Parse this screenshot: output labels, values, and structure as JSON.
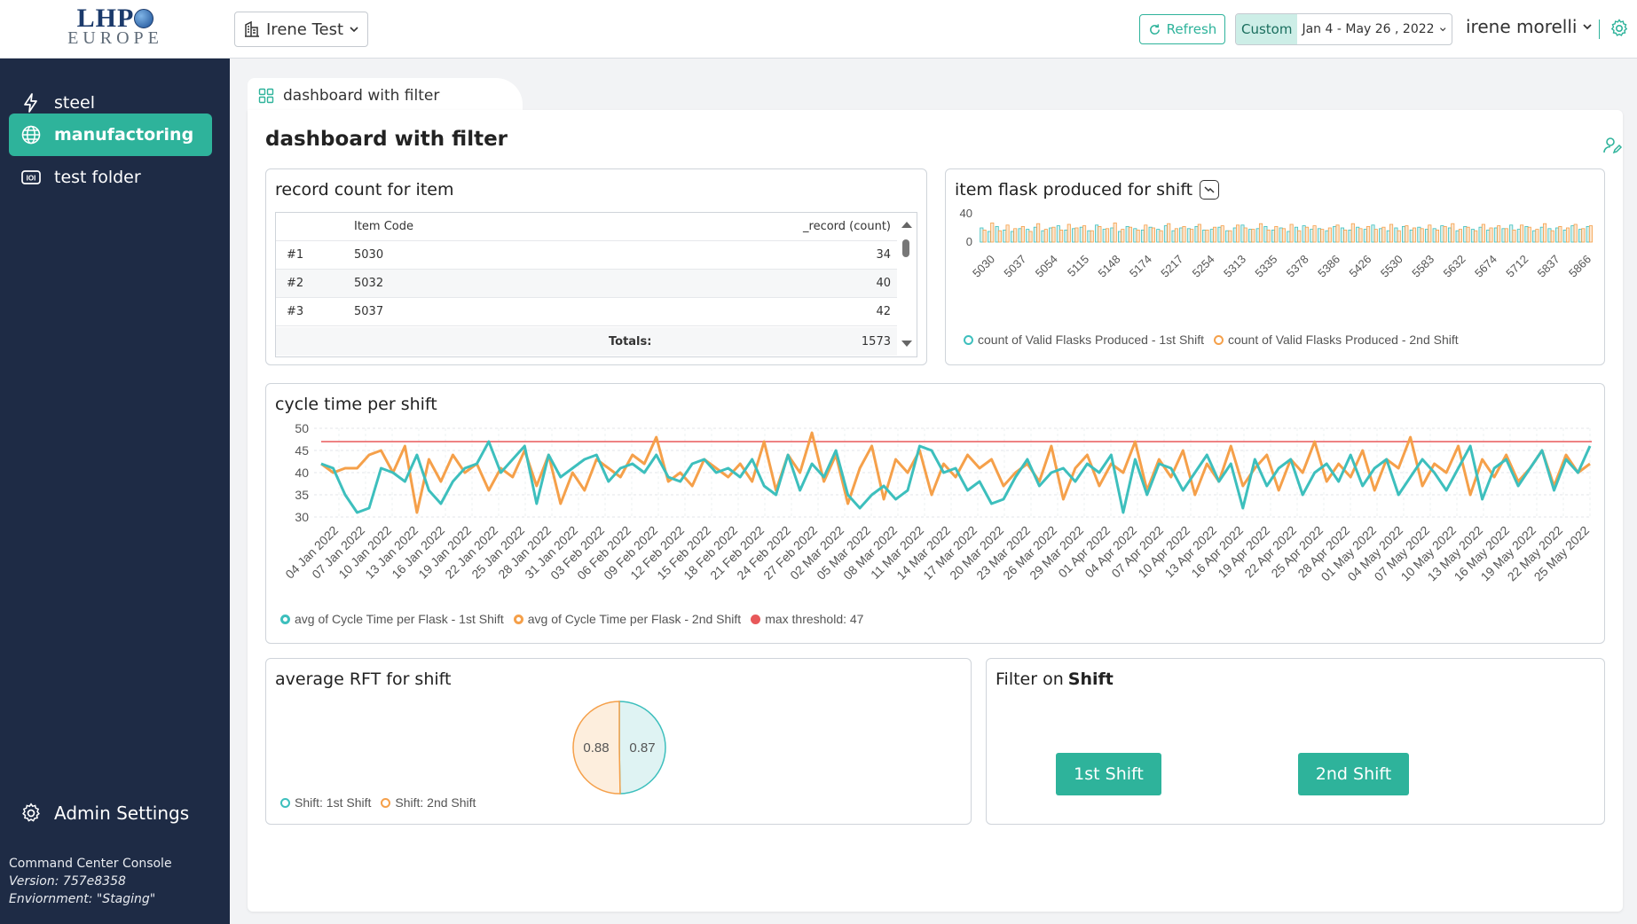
{
  "header": {
    "logo_top": "LHP",
    "logo_bottom": "EUROPE",
    "workspace": "Irene Test",
    "refresh_label": "Refresh",
    "date_mode": "Custom",
    "date_range": "Jan 4 - May 26 , 2022",
    "user_name": "irene morelli"
  },
  "sidebar": {
    "items": [
      {
        "label": "steel",
        "icon": "lightning-icon"
      },
      {
        "label": "manufactoring",
        "icon": "globe-icon"
      },
      {
        "label": "test folder",
        "icon": "folder-icon"
      }
    ],
    "admin_label": "Admin Settings",
    "console_name": "Command Center Console",
    "version": "Version: 757e8358",
    "environment": "Enviornment: \"Staging\""
  },
  "tab": {
    "label": "dashboard with filter"
  },
  "dashboard": {
    "title": "dashboard with filter"
  },
  "colors": {
    "accent": "#2eb39b",
    "sidebar": "#1e2b45",
    "teal_series": "#3dbfbd",
    "orange_series": "#f5a04a",
    "threshold": "#e8585a"
  },
  "record_table": {
    "title": "record count for item",
    "headers": [
      "",
      "Item Code",
      "_record (count)"
    ],
    "rows": [
      {
        "rank": "#1",
        "code": "5030",
        "count": "34"
      },
      {
        "rank": "#2",
        "code": "5032",
        "count": "40"
      },
      {
        "rank": "#3",
        "code": "5037",
        "count": "42"
      }
    ],
    "totals_label": "Totals:",
    "totals_value": "1573"
  },
  "flask_chart": {
    "title": "item flask produced for shift",
    "legend": [
      "count of Valid Flasks Produced - 1st Shift",
      "count of Valid Flasks Produced - 2nd Shift"
    ]
  },
  "cycle_chart": {
    "title": "cycle time per shift",
    "legend": [
      "avg of Cycle Time per Flask - 1st Shift",
      "avg of Cycle Time per Flask - 2nd Shift",
      "max threshold: 47"
    ]
  },
  "rft_chart": {
    "title": "average RFT for shift",
    "legend": [
      "Shift: 1st Shift",
      "Shift: 2nd Shift"
    ]
  },
  "filter": {
    "title_prefix": "Filter on",
    "title_field": "Shift",
    "buttons": [
      "1st Shift",
      "2nd Shift"
    ]
  },
  "chart_data": [
    {
      "type": "bar",
      "title": "item flask produced for shift",
      "y_ticks": [
        "40",
        "0"
      ],
      "ylim": [
        0,
        40
      ],
      "x_tick_labels": [
        "5030",
        "5037",
        "5054",
        "5115",
        "5148",
        "5174",
        "5217",
        "5254",
        "5313",
        "5335",
        "5378",
        "5386",
        "5426",
        "5530",
        "5583",
        "5632",
        "5674",
        "5712",
        "5837",
        "5866"
      ],
      "series": [
        {
          "name": "count of Valid Flasks Produced - 1st Shift",
          "values": [
            20,
            15,
            22,
            17,
            15,
            19,
            18,
            21,
            16,
            20,
            23,
            17,
            19,
            21,
            16,
            24,
            18,
            20,
            15,
            22,
            19,
            17,
            21,
            18,
            23,
            16,
            20,
            19,
            22,
            17,
            18,
            21,
            16,
            20,
            24,
            18,
            19,
            22,
            17,
            20,
            15,
            21,
            23,
            18,
            19,
            16,
            22,
            20,
            17,
            21,
            18,
            24,
            19,
            16,
            20,
            22,
            17,
            21,
            18,
            19,
            23,
            20,
            16,
            22,
            18,
            21,
            17,
            20,
            19,
            24,
            18,
            22,
            16,
            21,
            19,
            20,
            17,
            23,
            18,
            22
          ]
        },
        {
          "name": "count of Valid Flasks Produced - 2nd Shift",
          "values": [
            17,
            27,
            16,
            24,
            19,
            22,
            15,
            26,
            18,
            21,
            17,
            25,
            20,
            23,
            16,
            22,
            19,
            27,
            18,
            21,
            17,
            24,
            20,
            16,
            26,
            19,
            22,
            18,
            25,
            17,
            21,
            23,
            16,
            24,
            20,
            18,
            26,
            17,
            22,
            19,
            25,
            16,
            21,
            23,
            18,
            20,
            24,
            17,
            26,
            19,
            22,
            18,
            21,
            25,
            16,
            23,
            20,
            19,
            24,
            17,
            22,
            26,
            18,
            21,
            16,
            25,
            20,
            23,
            19,
            17,
            24,
            21,
            18,
            26,
            16,
            22,
            20,
            25,
            19,
            23
          ]
        }
      ]
    },
    {
      "type": "line",
      "title": "cycle time per shift",
      "ylim": [
        30,
        50
      ],
      "y_ticks": [
        50,
        45,
        40,
        35,
        30
      ],
      "x_tick_labels": [
        "04 Jan 2022",
        "07 Jan 2022",
        "10 Jan 2022",
        "13 Jan 2022",
        "16 Jan 2022",
        "19 Jan 2022",
        "22 Jan 2022",
        "25 Jan 2022",
        "28 Jan 2022",
        "31 Jan 2022",
        "03 Feb 2022",
        "06 Feb 2022",
        "09 Feb 2022",
        "12 Feb 2022",
        "15 Feb 2022",
        "18 Feb 2022",
        "21 Feb 2022",
        "24 Feb 2022",
        "27 Feb 2022",
        "02 Mar 2022",
        "05 Mar 2022",
        "08 Mar 2022",
        "11 Mar 2022",
        "14 Mar 2022",
        "17 Mar 2022",
        "20 Mar 2022",
        "23 Mar 2022",
        "26 Mar 2022",
        "29 Mar 2022",
        "01 Apr 2022",
        "04 Apr 2022",
        "07 Apr 2022",
        "10 Apr 2022",
        "13 Apr 2022",
        "16 Apr 2022",
        "19 Apr 2022",
        "22 Apr 2022",
        "25 Apr 2022",
        "28 Apr 2022",
        "01 May 2022",
        "04 May 2022",
        "07 May 2022",
        "10 May 2022",
        "13 May 2022",
        "16 May 2022",
        "19 May 2022",
        "22 May 2022",
        "25 May 2022"
      ],
      "threshold": 47,
      "series": [
        {
          "name": "avg of Cycle Time per Flask - 1st Shift",
          "values": [
            42,
            41,
            35,
            31,
            32,
            41,
            40,
            38,
            44,
            36,
            33,
            38,
            41,
            42,
            47,
            40,
            43,
            46,
            33,
            44,
            39,
            41,
            43,
            44,
            38,
            41,
            42,
            40,
            44,
            39,
            38,
            42,
            43,
            40,
            41,
            39,
            43,
            37,
            35,
            44,
            36,
            42,
            39,
            45,
            35,
            32,
            35,
            37,
            34,
            36,
            46,
            45,
            40,
            41,
            36,
            38,
            33,
            34,
            39,
            43,
            37,
            40,
            41,
            38,
            42,
            40,
            44,
            31,
            43,
            35,
            42,
            41,
            36,
            40,
            44,
            38,
            42,
            32,
            43,
            37,
            41,
            43,
            35,
            40,
            42,
            38,
            44,
            37,
            41,
            43,
            35,
            39,
            43,
            40,
            36,
            41,
            46,
            34,
            41,
            43,
            37,
            41,
            45,
            36,
            43,
            40,
            46
          ]
        },
        {
          "name": "avg of Cycle Time per Flask - 2nd Shift",
          "values": [
            42,
            40,
            41,
            41,
            44,
            45,
            40,
            46,
            31,
            43,
            38,
            44,
            40,
            42,
            36,
            41,
            39,
            45,
            37,
            44,
            33,
            40,
            36,
            43,
            41,
            39,
            44,
            42,
            48,
            38,
            40,
            37,
            43,
            41,
            39,
            42,
            38,
            47,
            36,
            44,
            40,
            49,
            38,
            44,
            33,
            41,
            46,
            34,
            43,
            40,
            45,
            35,
            42,
            39,
            44,
            41,
            43,
            37,
            40,
            42,
            38,
            46,
            34,
            41,
            44,
            37,
            42,
            40,
            47,
            36,
            43,
            39,
            45,
            35,
            42,
            38,
            46,
            37,
            41,
            44,
            36,
            43,
            40,
            47,
            38,
            42,
            39,
            45,
            36,
            43,
            41,
            48,
            37,
            42,
            40,
            46,
            35,
            43,
            39,
            44,
            38,
            41,
            45,
            37,
            44,
            40,
            42
          ]
        }
      ]
    },
    {
      "type": "pie",
      "title": "average RFT for shift",
      "slices": [
        {
          "label": "Shift: 1st Shift",
          "value": 0.87,
          "display": "0.87"
        },
        {
          "label": "Shift: 2nd Shift",
          "value": 0.88,
          "display": "0.88"
        }
      ]
    }
  ]
}
